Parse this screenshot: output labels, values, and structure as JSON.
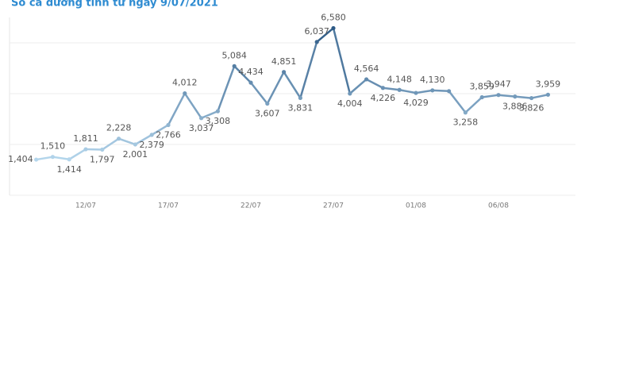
{
  "chart_data": {
    "type": "line",
    "title": "Số ca dương tính từ ngày 9/07/2021",
    "categories": [
      null,
      null,
      null,
      "12/07",
      null,
      null,
      null,
      null,
      "17/07",
      null,
      null,
      null,
      null,
      "22/07",
      null,
      null,
      null,
      null,
      "27/07",
      null,
      null,
      null,
      null,
      "01/08",
      null,
      null,
      null,
      null,
      "06/08",
      null,
      null,
      null
    ],
    "values": [
      1404,
      1510,
      1414,
      1811,
      1797,
      2228,
      2001,
      2379,
      2766,
      4012,
      3037,
      3308,
      5084,
      4434,
      3607,
      4851,
      3831,
      6037,
      6580,
      4004,
      4564,
      4226,
      4148,
      4029,
      4130,
      4100,
      3258,
      3859,
      3947,
      3886,
      3826,
      3959
    ],
    "value_labels": [
      "1,404",
      "1,510",
      "1,414",
      "1,811",
      "1,797",
      "2,228",
      "2,001",
      "2,379",
      "2,766",
      "4,012",
      "3,037",
      "3,308",
      "5,084",
      "4,434",
      "3,607",
      "4,851",
      "3,831",
      "6,037",
      "6,580",
      "4,004",
      "4,564",
      "4,226",
      "4,148",
      "4,029",
      "4,130",
      null,
      "3,258",
      "3,859",
      "3,947",
      "3,886",
      "3,826",
      "3,959"
    ],
    "color_range": [
      "#b4d6ec",
      "#2e5a86"
    ],
    "ylim": [
      0,
      7000
    ],
    "yticks": [
      0,
      2000,
      4000,
      6000
    ],
    "grid": true
  }
}
